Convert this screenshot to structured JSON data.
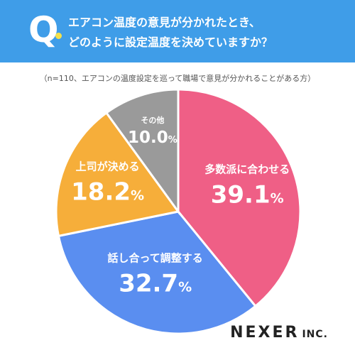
{
  "header": {
    "letter": "Q",
    "line1": "エアコン温度の意見が分かれたとき、",
    "line2": "どのように設定温度を決めていますか？",
    "bg_color": "#3f9de8"
  },
  "note": "（n=110、エアコンの温度設定を巡って職場で意見が分かれることがある方）",
  "chart_data": {
    "type": "pie",
    "title": "",
    "unit": "%",
    "start": "12 o'clock",
    "direction": "clockwise",
    "slices": [
      {
        "label": "多数派に合わせる",
        "value": 39.1,
        "color": "#ef5f86"
      },
      {
        "label": "話し合って調整する",
        "value": 32.7,
        "color": "#5a8ef0"
      },
      {
        "label": "上司が決める",
        "value": 18.2,
        "color": "#f6ae3a"
      },
      {
        "label": "その他",
        "value": 10.0,
        "color": "#9a9a9a"
      }
    ]
  },
  "logo": {
    "main": "NEXER",
    "sub": "INC."
  }
}
